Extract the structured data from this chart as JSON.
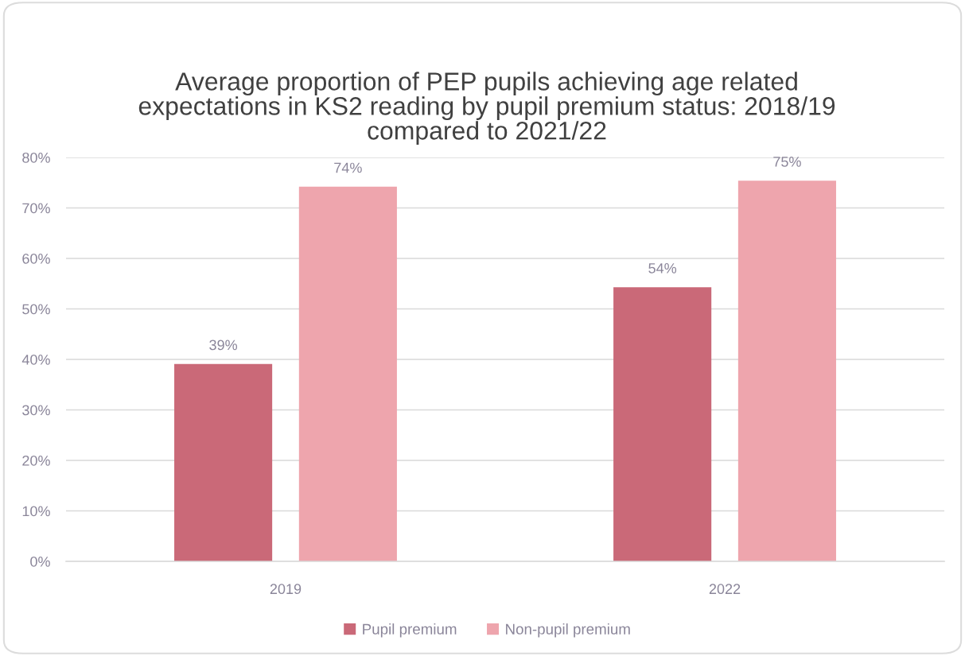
{
  "chart_data": {
    "type": "bar",
    "title": "Average proportion of PEP pupils achieving age related expectations in KS2 reading by pupil premium status: 2018/19 compared to 2021/22",
    "categories": [
      "2019",
      "2022"
    ],
    "series": [
      {
        "name": "Pupil premium",
        "color": "#ca6978",
        "values": [
          39.1,
          54.3
        ],
        "value_labels": [
          "39%",
          "54%"
        ]
      },
      {
        "name": "Non-pupil premium",
        "color": "#eea5ad",
        "values": [
          74.2,
          75.4
        ],
        "value_labels": [
          "74%",
          "75%"
        ]
      }
    ],
    "ylim": [
      0,
      80
    ],
    "yticks": [
      {
        "value": 0,
        "label": "0%"
      },
      {
        "value": 10,
        "label": "10%"
      },
      {
        "value": 20,
        "label": "20%"
      },
      {
        "value": 30,
        "label": "30%"
      },
      {
        "value": 40,
        "label": "40%"
      },
      {
        "value": 50,
        "label": "50%"
      },
      {
        "value": 60,
        "label": "60%"
      },
      {
        "value": 70,
        "label": "70%"
      },
      {
        "value": 80,
        "label": "80%"
      }
    ],
    "grid": "y",
    "legend": "bottom"
  }
}
